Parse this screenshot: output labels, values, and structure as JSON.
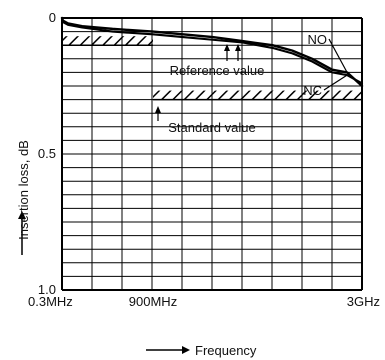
{
  "chart_data": {
    "type": "line",
    "ylabel": "Insertion loss, dB",
    "xlabel": "Frequency",
    "xticks": [
      {
        "label": "0.3MHz",
        "value": 0.3
      },
      {
        "label": "900MHz",
        "value": 900
      },
      {
        "label": "3GHz",
        "value": 3000
      }
    ],
    "yticks": [
      {
        "label": "0",
        "value": 0
      },
      {
        "label": "0.5",
        "value": 0.5
      },
      {
        "label": "1.0",
        "value": 1.0
      }
    ],
    "ylim": [
      0,
      1.0
    ],
    "yaxis_inverted": true,
    "series": [
      {
        "name": "NO",
        "x": [
          0.3,
          10,
          60,
          200,
          500,
          900,
          1200,
          1500,
          1800,
          2100,
          2300,
          2500,
          2700,
          2850,
          3000
        ],
        "y": [
          0.0,
          0.01,
          0.02,
          0.03,
          0.04,
          0.05,
          0.06,
          0.07,
          0.085,
          0.1,
          0.12,
          0.15,
          0.19,
          0.2,
          0.25
        ]
      },
      {
        "name": "NC",
        "x": [
          0.3,
          10,
          60,
          200,
          500,
          900,
          1200,
          1500,
          1800,
          2100,
          2300,
          2500,
          2700,
          2850,
          3000
        ],
        "y": [
          0.0,
          0.015,
          0.025,
          0.035,
          0.05,
          0.06,
          0.07,
          0.08,
          0.09,
          0.11,
          0.13,
          0.16,
          0.2,
          0.21,
          0.24
        ]
      }
    ],
    "reference": {
      "label": "Reference value",
      "x_start": 0.3,
      "x_end": 900,
      "y": 0.1
    },
    "standard": {
      "label": "Standard value",
      "x_start": 900,
      "x_end": 3000,
      "y": 0.3
    },
    "grid": true
  }
}
